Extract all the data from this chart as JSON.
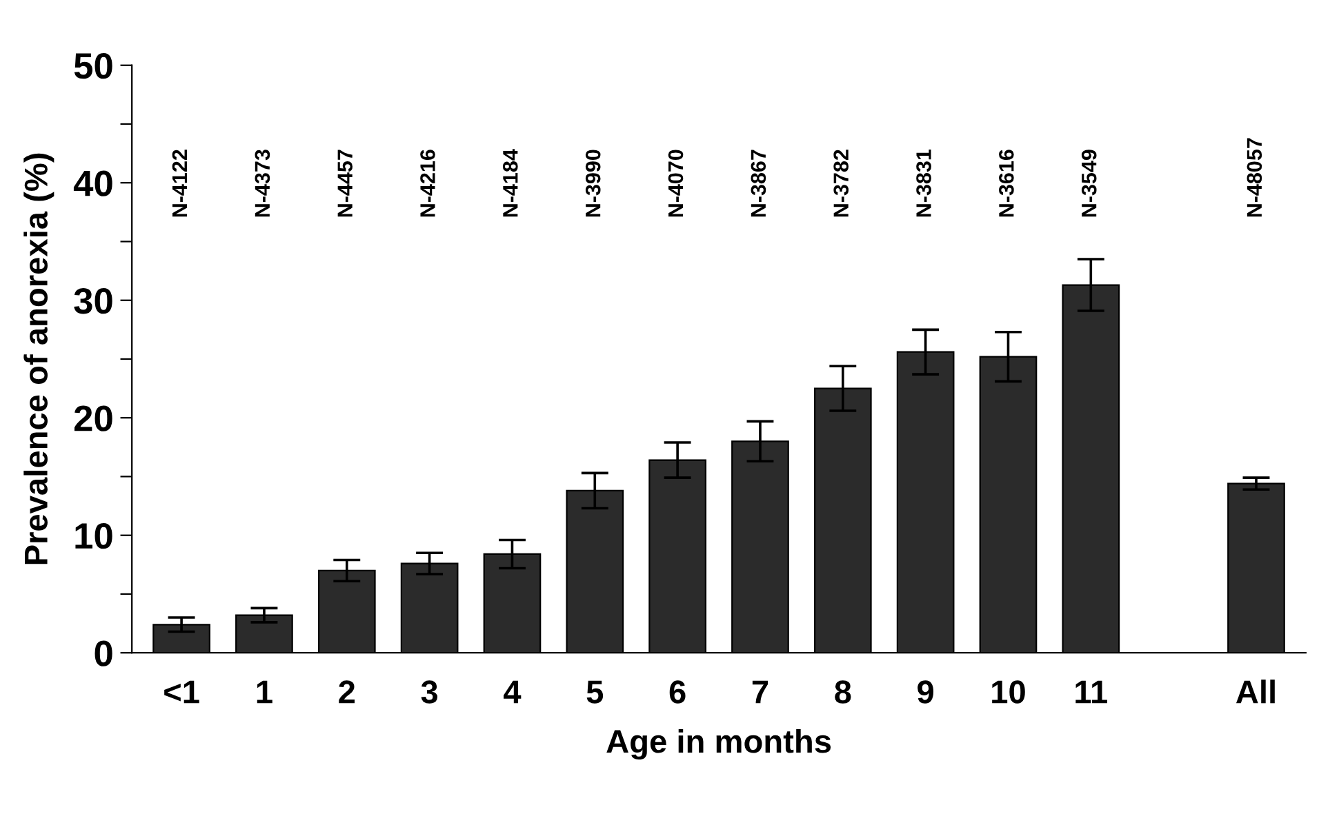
{
  "chart_data": {
    "type": "bar",
    "xlabel": "Age in months",
    "ylabel": "Prevalence of anorexia (%)",
    "categories": [
      "<1",
      "1",
      "2",
      "3",
      "4",
      "5",
      "6",
      "7",
      "8",
      "9",
      "10",
      "11",
      null,
      "All"
    ],
    "values": [
      2.4,
      3.2,
      7.0,
      7.6,
      8.4,
      13.8,
      16.4,
      18.0,
      22.5,
      25.6,
      25.2,
      31.3,
      null,
      14.4
    ],
    "errors": [
      0.6,
      0.6,
      0.9,
      0.9,
      1.2,
      1.5,
      1.5,
      1.7,
      1.9,
      1.9,
      2.1,
      2.2,
      null,
      0.5
    ],
    "color": "#2b2b2b",
    "ylim": [
      0,
      50
    ],
    "yticks": [
      0,
      {
        "value": 5,
        "label": null
      },
      10,
      {
        "value": 15,
        "label": null
      },
      20,
      {
        "value": 25,
        "label": null
      },
      30,
      {
        "value": 35,
        "label": null
      },
      40,
      {
        "value": 45,
        "label": null
      },
      50
    ],
    "grid": false,
    "legend": false,
    "annotations": [
      "N-4122",
      "N-4373",
      "N-4457",
      "N-4216",
      "N-4184",
      "N-3990",
      "N-4070",
      "N-3867",
      "N-3782",
      "N-3831",
      "N-3616",
      "N-3549",
      "N-48057"
    ]
  }
}
